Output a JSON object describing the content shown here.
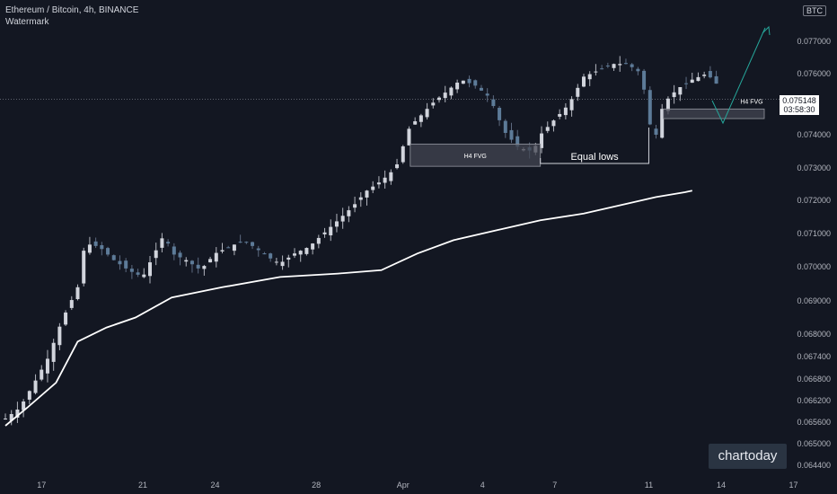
{
  "header": {
    "title": "Ethereum / Bitcoin, 4h, BINANCE",
    "subtitle": "Watermark",
    "currency_badge": "BTC"
  },
  "price_label": {
    "price": "0.075148",
    "countdown": "03:58:30"
  },
  "watermark_logo": "chartoday",
  "colors": {
    "background": "#131722",
    "candle": "#9598a1",
    "ma_line": "#ffffff",
    "zone_fill": "#434651",
    "projection": "#26a69a",
    "grid_text": "#b2b5be"
  },
  "chart_data": {
    "type": "candlestick",
    "symbol": "ETH/BTC",
    "timeframe": "4h",
    "exchange": "BINANCE",
    "ylim": [
      0.064,
      0.079
    ],
    "y_ticks": [
      "0.077000",
      "0.076000",
      "0.075148",
      "0.074000",
      "0.073000",
      "0.072000",
      "0.071000",
      "0.070000",
      "0.069000",
      "0.068000",
      "0.067400",
      "0.066800",
      "0.066200",
      "0.065600",
      "0.065000",
      "0.064400"
    ],
    "x_ticks": [
      "17",
      "21",
      "24",
      "28",
      "Apr",
      "4",
      "7",
      "11",
      "14",
      "17"
    ],
    "close_path": [
      [
        0,
        0.0657
      ],
      [
        2,
        0.066
      ],
      [
        4,
        0.0667
      ],
      [
        6,
        0.0674
      ],
      [
        8,
        0.0685
      ],
      [
        10,
        0.0694
      ],
      [
        11,
        0.0707
      ],
      [
        13,
        0.0706
      ],
      [
        15,
        0.0702
      ],
      [
        17,
        0.0699
      ],
      [
        19,
        0.0697
      ],
      [
        22,
        0.071
      ],
      [
        23,
        0.0704
      ],
      [
        25,
        0.0702
      ],
      [
        27,
        0.0699
      ],
      [
        29,
        0.0704
      ],
      [
        31,
        0.0706
      ],
      [
        33,
        0.0708
      ],
      [
        35,
        0.0705
      ],
      [
        37,
        0.0702
      ],
      [
        38,
        0.0701
      ],
      [
        40,
        0.0704
      ],
      [
        42,
        0.0706
      ],
      [
        44,
        0.071
      ],
      [
        46,
        0.0714
      ],
      [
        48,
        0.0718
      ],
      [
        50,
        0.0723
      ],
      [
        52,
        0.0726
      ],
      [
        54,
        0.073
      ],
      [
        56,
        0.0743
      ],
      [
        57,
        0.0745
      ],
      [
        59,
        0.075
      ],
      [
        61,
        0.0754
      ],
      [
        63,
        0.0758
      ],
      [
        65,
        0.0756
      ],
      [
        67,
        0.0752
      ],
      [
        69,
        0.0741
      ],
      [
        71,
        0.0736
      ],
      [
        73,
        0.0735
      ],
      [
        74,
        0.074
      ],
      [
        76,
        0.0745
      ],
      [
        78,
        0.075
      ],
      [
        80,
        0.0759
      ],
      [
        82,
        0.0761
      ],
      [
        84,
        0.0763
      ],
      [
        86,
        0.0763
      ],
      [
        88,
        0.076
      ],
      [
        89,
        0.0744
      ],
      [
        90,
        0.074
      ],
      [
        91,
        0.075
      ],
      [
        93,
        0.0755
      ],
      [
        95,
        0.0758
      ],
      [
        97,
        0.076
      ],
      [
        99,
        0.0755
      ]
    ],
    "ema_path": [
      [
        0,
        0.0655
      ],
      [
        3,
        0.066
      ],
      [
        7,
        0.0667
      ],
      [
        10,
        0.0678
      ],
      [
        14,
        0.0682
      ],
      [
        18,
        0.0685
      ],
      [
        23,
        0.0691
      ],
      [
        30,
        0.0694
      ],
      [
        38,
        0.0697
      ],
      [
        46,
        0.0698
      ],
      [
        52,
        0.0699
      ],
      [
        57,
        0.0704
      ],
      [
        62,
        0.0708
      ],
      [
        68,
        0.0711
      ],
      [
        74,
        0.0714
      ],
      [
        80,
        0.0716
      ],
      [
        86,
        0.0719
      ],
      [
        90,
        0.0721
      ],
      [
        94,
        0.07225
      ],
      [
        95,
        0.0723
      ]
    ],
    "zones": [
      {
        "label": "H4 FVG",
        "x0": 56,
        "x1": 74,
        "y0": 0.07305,
        "y1": 0.07372
      },
      {
        "label": "H4 FVG",
        "x0": 91,
        "x1": 106,
        "y0": 0.07452,
        "y1": 0.07483
      }
    ],
    "annotations": [
      {
        "label": "Equal lows",
        "from": [
          74,
          0.0731
        ],
        "to": [
          89,
          0.0731
        ]
      }
    ],
    "projection": [
      [
        99,
        0.0752
      ],
      [
        100,
        0.0749
      ],
      [
        101,
        0.0747
      ],
      [
        103,
        0.076
      ],
      [
        105,
        0.0784
      ]
    ],
    "current_price": 0.075148
  }
}
